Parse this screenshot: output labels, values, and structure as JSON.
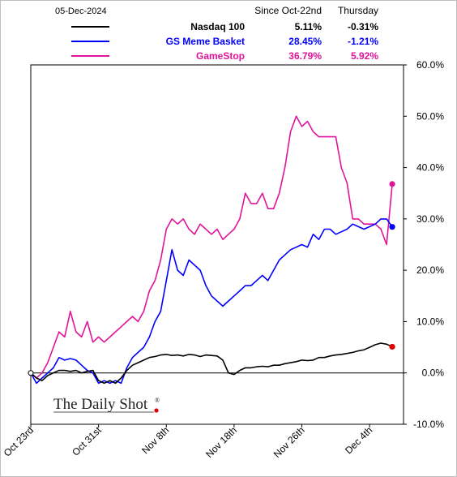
{
  "chart_data": {
    "type": "line",
    "date_label": "05-Dec-2024",
    "legend": {
      "col1_header": "Since Oct-22nd",
      "col2_header": "Thursday",
      "placement": "top"
    },
    "x_ticks": [
      "Oct 23rd",
      "Oct 31st",
      "Nov 8th",
      "Nov 18th",
      "Nov 26th",
      "Dec 4th"
    ],
    "y_ticks": [
      "60.0%",
      "50.0%",
      "40.0%",
      "30.0%",
      "20.0%",
      "10.0%",
      "0.0%",
      "-10.0%"
    ],
    "ylim": [
      -10,
      60
    ],
    "xlim": [
      0,
      33
    ],
    "x_tick_positions": [
      0,
      6,
      12,
      18,
      24,
      30
    ],
    "series": [
      {
        "name": "Nasdaq 100",
        "since": "5.11%",
        "thursday": "-0.31%",
        "color": "#000000",
        "end_point": [
          32,
          5.1
        ],
        "x": [
          0,
          0.5,
          1,
          1.5,
          2,
          2.5,
          3,
          3.5,
          4,
          4.5,
          5,
          5.5,
          6,
          6.5,
          7,
          7.5,
          8,
          8.5,
          9,
          9.5,
          10,
          10.5,
          11,
          11.5,
          12,
          12.5,
          13,
          13.5,
          14,
          14.5,
          15,
          15.5,
          16,
          16.5,
          17,
          17.5,
          18,
          18.5,
          19,
          19.5,
          20,
          20.5,
          21,
          21.5,
          22,
          22.5,
          23,
          23.5,
          24,
          24.5,
          25,
          25.5,
          26,
          26.5,
          27,
          27.5,
          28,
          28.5,
          29,
          29.5,
          30,
          30.5,
          31,
          31.5,
          32
        ],
        "values": [
          0,
          -1,
          -1.5,
          -0.5,
          0,
          0.5,
          0.5,
          0.3,
          0.5,
          0,
          0.3,
          0.5,
          -1.5,
          -2,
          -1.5,
          -2,
          -1,
          0.5,
          1.5,
          2,
          2.5,
          3,
          3.2,
          3.5,
          3.6,
          3.4,
          3.5,
          3.3,
          3.6,
          3.5,
          3.2,
          3.5,
          3.4,
          3.3,
          2.5,
          0,
          -0.3,
          0.5,
          1,
          1,
          1.2,
          1.3,
          1.2,
          1.5,
          1.5,
          1.8,
          2,
          2.2,
          2.5,
          2.4,
          2.5,
          3,
          3,
          3.3,
          3.5,
          3.6,
          3.8,
          4,
          4.3,
          4.5,
          5,
          5.5,
          5.8,
          5.6,
          5.1
        ]
      },
      {
        "name": "GS Meme Basket",
        "since": "28.45%",
        "thursday": "-1.21%",
        "color": "#0000ff",
        "end_point": [
          32,
          28.45
        ],
        "x": [
          0,
          0.5,
          1,
          1.5,
          2,
          2.5,
          3,
          3.5,
          4,
          4.5,
          5,
          5.5,
          6,
          6.5,
          7,
          7.5,
          8,
          8.5,
          9,
          9.5,
          10,
          10.5,
          11,
          11.5,
          12,
          12.5,
          13,
          13.5,
          14,
          14.5,
          15,
          15.5,
          16,
          16.5,
          17,
          17.5,
          18,
          18.5,
          19,
          19.5,
          20,
          20.5,
          21,
          21.5,
          22,
          22.5,
          23,
          23.5,
          24,
          24.5,
          25,
          25.5,
          26,
          26.5,
          27,
          27.5,
          28,
          28.5,
          29,
          29.5,
          30,
          30.5,
          31,
          31.5,
          32
        ],
        "values": [
          0,
          -2,
          -1,
          0,
          1,
          3,
          2.5,
          2.8,
          2.5,
          1.5,
          0.5,
          0,
          -2,
          -1.5,
          -2,
          -1.5,
          -2,
          1,
          3,
          4,
          5,
          7,
          10,
          12,
          18,
          24,
          20,
          19,
          22,
          21,
          20,
          17,
          15,
          14,
          13,
          14,
          15,
          16,
          17,
          17,
          18,
          19,
          18,
          20,
          22,
          23,
          24,
          24.5,
          25,
          24.5,
          27,
          26,
          28,
          28,
          27,
          27.5,
          28,
          29,
          28.5,
          28,
          28.5,
          29,
          30,
          30,
          28.45
        ]
      },
      {
        "name": "GameStop",
        "since": "36.79%",
        "thursday": "5.92%",
        "color": "#e0149a",
        "end_point": [
          32,
          36.79
        ],
        "x": [
          0,
          0.5,
          1,
          1.5,
          2,
          2.5,
          3,
          3.5,
          4,
          4.5,
          5,
          5.5,
          6,
          6.5,
          7,
          7.5,
          8,
          8.5,
          9,
          9.5,
          10,
          10.5,
          11,
          11.5,
          12,
          12.5,
          13,
          13.5,
          14,
          14.5,
          15,
          15.5,
          16,
          16.5,
          17,
          17.5,
          18,
          18.5,
          19,
          19.5,
          20,
          20.5,
          21,
          21.5,
          22,
          22.5,
          23,
          23.5,
          24,
          24.5,
          25,
          25.5,
          26,
          26.5,
          27,
          27.5,
          28,
          28.5,
          29,
          29.5,
          30,
          30.5,
          31,
          31.5,
          32
        ],
        "values": [
          0,
          -1,
          0,
          2,
          5,
          8,
          7,
          12,
          8,
          7,
          10,
          6,
          7,
          6,
          7,
          8,
          9,
          10,
          11,
          10,
          12,
          16,
          18,
          22,
          28,
          30,
          29,
          30,
          28,
          27,
          29,
          28,
          27,
          28,
          26,
          27,
          28,
          30,
          35,
          33,
          33,
          35,
          32,
          32,
          35,
          40,
          47,
          50,
          48,
          49,
          47,
          46,
          46,
          46,
          46,
          40,
          37,
          30,
          30,
          29,
          29,
          29,
          28,
          25,
          36.79
        ]
      }
    ]
  },
  "watermark": {
    "brand": "The Daily Shot",
    "mark": "®"
  }
}
